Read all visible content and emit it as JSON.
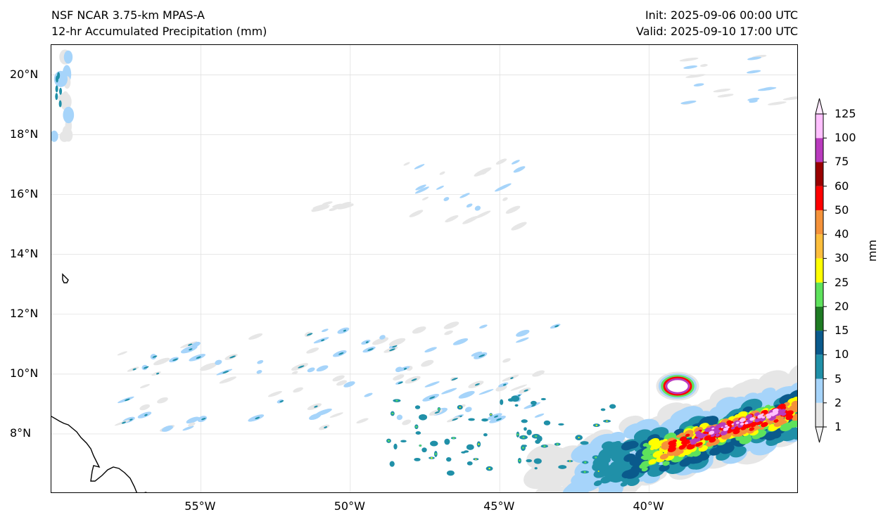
{
  "header": {
    "model": "NSF NCAR 3.75-km MPAS-A",
    "field": "12-hr Accumulated Precipitation (mm)",
    "init": "Init: 2025-09-06 00:00 UTC",
    "valid": "Valid: 2025-09-10 17:00 UTC"
  },
  "map": {
    "lat_labels": [
      "20°N",
      "18°N",
      "16°N",
      "14°N",
      "12°N",
      "10°N",
      "8°N"
    ],
    "lon_labels": [
      "55°W",
      "50°W",
      "45°W",
      "40°W"
    ],
    "extent": {
      "lon_min": -60,
      "lon_max": -35,
      "lat_min": 6,
      "lat_max": 21
    },
    "gridlines": true
  },
  "colorbar": {
    "unit": "mm",
    "levels": [
      "1",
      "2",
      "5",
      "10",
      "15",
      "20",
      "25",
      "30",
      "40",
      "50",
      "60",
      "75",
      "100",
      "125"
    ],
    "colors": [
      "#e6e6e6",
      "#a6d4fa",
      "#2090a8",
      "#0a5a8c",
      "#1e7b23",
      "#5ee25c",
      "#ffff00",
      "#fdbe3c",
      "#f5923a",
      "#ff0000",
      "#9a0000",
      "#b93bbd",
      "#ffc0ff"
    ]
  }
}
